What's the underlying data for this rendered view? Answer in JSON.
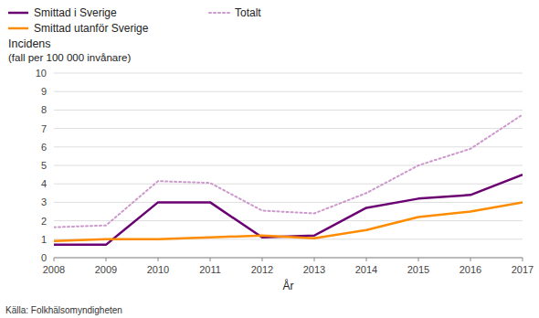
{
  "chart_data": {
    "type": "line",
    "ylabel": [
      "Incidens",
      "(fall per 100 000 invånare)"
    ],
    "xlabel": "År",
    "source": "Källa: Folkhälsomyndigheten",
    "x": [
      2008,
      2009,
      2010,
      2011,
      2012,
      2013,
      2014,
      2015,
      2016,
      2017
    ],
    "xlim": [
      2008,
      2017
    ],
    "xticks": [
      2008,
      2009,
      2010,
      2011,
      2012,
      2013,
      2014,
      2015,
      2016,
      2017
    ],
    "ylim": [
      0,
      10
    ],
    "yticks": [
      0,
      1,
      2,
      3,
      4,
      5,
      6,
      7,
      8,
      9,
      10
    ],
    "grid": true,
    "legend": "top",
    "series": [
      {
        "name": "Smittad i Sverige",
        "color": "#6B0072",
        "line_style": "solid",
        "values": [
          0.7,
          0.7,
          3.0,
          3.0,
          1.1,
          1.2,
          2.7,
          3.2,
          3.4,
          4.5
        ]
      },
      {
        "name": "Smittad utanför Sverige",
        "color": "#FF8C00",
        "line_style": "solid",
        "values": [
          0.9,
          1.0,
          1.0,
          1.1,
          1.2,
          1.05,
          1.5,
          2.2,
          2.5,
          3.0
        ]
      },
      {
        "name": "Totalt",
        "color": "#CC99CC",
        "line_style": "dotted",
        "values": [
          1.65,
          1.75,
          4.15,
          4.05,
          2.55,
          2.4,
          3.5,
          5.0,
          5.9,
          7.75
        ]
      }
    ]
  }
}
